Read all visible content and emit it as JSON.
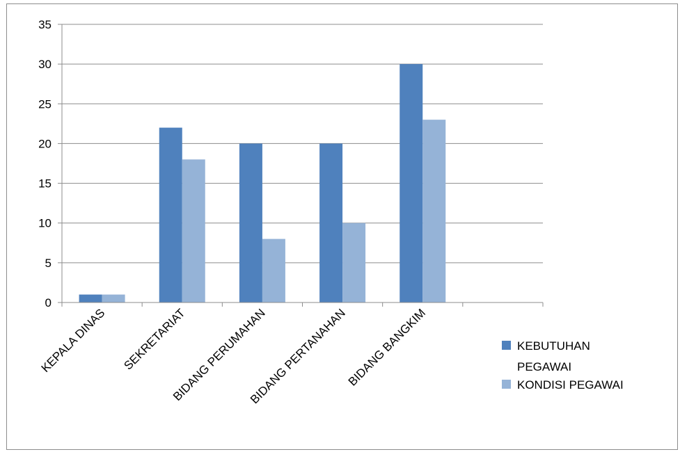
{
  "chart_data": {
    "type": "bar",
    "categories": [
      "KEPALA DINAS",
      "SEKRETARIAT",
      "BIDANG PERUMAHAN",
      "BIDANG PERTANAHAN",
      "BIDANG BANGKIM",
      ""
    ],
    "series": [
      {
        "name": "KEBUTUHAN PEGAWAI",
        "values": [
          1,
          22,
          20,
          20,
          30,
          null
        ],
        "color": "#4f81bd"
      },
      {
        "name": "KONDISI PEGAWAI",
        "values": [
          1,
          18,
          8,
          10,
          23,
          null
        ],
        "color": "#95b3d7"
      }
    ],
    "ylim": [
      0,
      35
    ],
    "yticks": [
      0,
      5,
      10,
      15,
      20,
      25,
      30,
      35
    ],
    "grid": true,
    "legend_position": "right",
    "legend_lines": [
      [
        "KEBUTUHAN",
        "PEGAWAI"
      ],
      [
        "KONDISI PEGAWAI"
      ]
    ]
  }
}
